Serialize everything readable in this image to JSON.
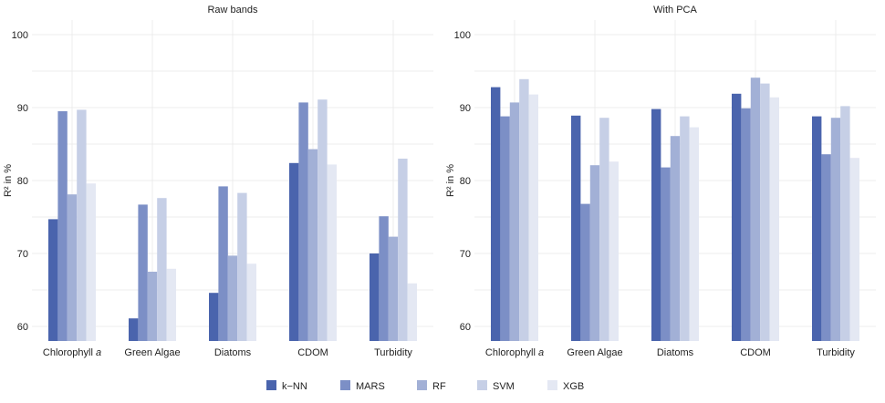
{
  "chart_data": [
    {
      "type": "bar",
      "title": "Raw bands",
      "ylabel": "R² in %",
      "ylim": [
        58,
        102
      ],
      "yticks": [
        60,
        70,
        80,
        90,
        100
      ],
      "grid": true,
      "categories": [
        "Chlorophyll ",
        "Green Algae",
        "Diatoms",
        "CDOM",
        "Turbidity"
      ],
      "category_italic_suffix": [
        "a",
        "",
        "",
        "",
        ""
      ],
      "series": [
        {
          "name": "k−NN",
          "values": [
            74.7,
            61.1,
            64.6,
            82.4,
            70.0
          ]
        },
        {
          "name": "MARS",
          "values": [
            89.5,
            76.7,
            79.2,
            90.7,
            75.1
          ]
        },
        {
          "name": "RF",
          "values": [
            78.1,
            67.5,
            69.7,
            84.3,
            72.3
          ]
        },
        {
          "name": "SVM",
          "values": [
            89.7,
            77.6,
            78.3,
            91.1,
            83.0
          ]
        },
        {
          "name": "XGB",
          "values": [
            79.6,
            67.9,
            68.6,
            82.2,
            65.9
          ]
        }
      ]
    },
    {
      "type": "bar",
      "title": "With PCA",
      "ylabel": "R² in %",
      "ylim": [
        58,
        102
      ],
      "yticks": [
        60,
        70,
        80,
        90,
        100
      ],
      "grid": true,
      "categories": [
        "Chlorophyll ",
        "Green Algae",
        "Diatoms",
        "CDOM",
        "Turbidity"
      ],
      "category_italic_suffix": [
        "a",
        "",
        "",
        "",
        ""
      ],
      "series": [
        {
          "name": "k−NN",
          "values": [
            92.8,
            88.9,
            89.8,
            91.9,
            88.8
          ]
        },
        {
          "name": "MARS",
          "values": [
            88.8,
            76.8,
            81.8,
            89.9,
            83.6
          ]
        },
        {
          "name": "RF",
          "values": [
            90.7,
            82.1,
            86.1,
            94.1,
            88.6
          ]
        },
        {
          "name": "SVM",
          "values": [
            93.9,
            88.6,
            88.8,
            93.3,
            90.2
          ]
        },
        {
          "name": "XGB",
          "values": [
            91.8,
            82.6,
            87.3,
            91.4,
            83.1
          ]
        }
      ]
    }
  ],
  "legend": {
    "position": "bottom",
    "items": [
      {
        "label": "k−NN",
        "color": "#4a64ad"
      },
      {
        "label": "MARS",
        "color": "#7c8fc6"
      },
      {
        "label": "RF",
        "color": "#a2b0d6"
      },
      {
        "label": "SVM",
        "color": "#c6cfe6"
      },
      {
        "label": "XGB",
        "color": "#e4e8f3"
      }
    ]
  },
  "series_colors": [
    "#4a64ad",
    "#7c8fc6",
    "#a2b0d6",
    "#c6cfe6",
    "#e4e8f3"
  ]
}
